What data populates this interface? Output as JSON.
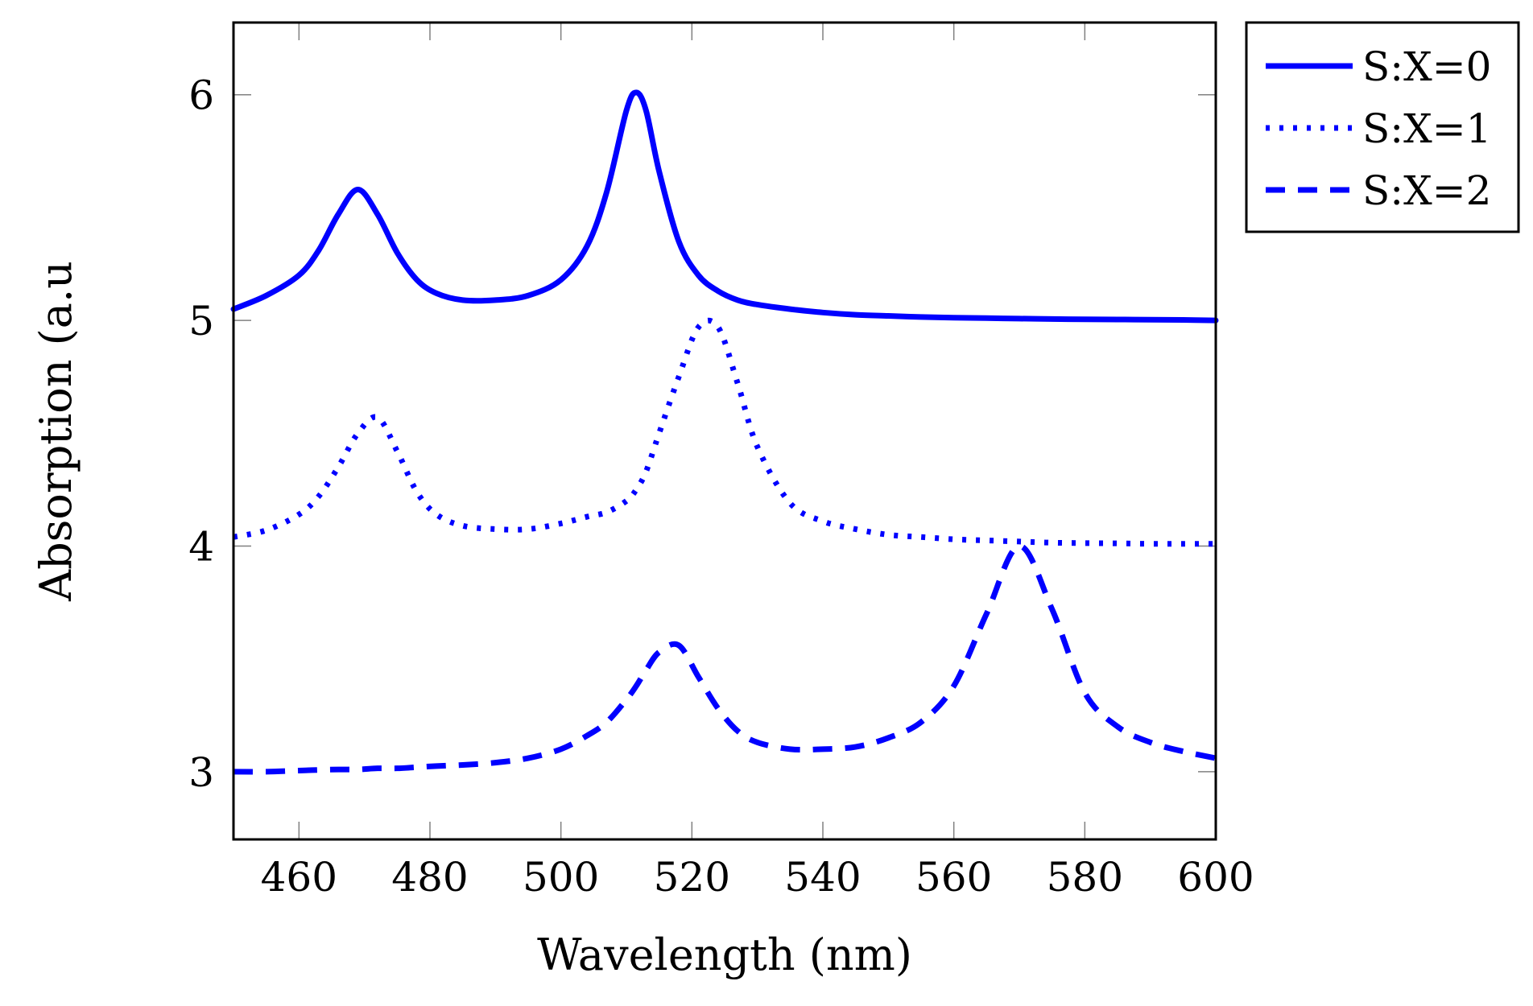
{
  "chart_data": {
    "type": "line",
    "title": "",
    "xlabel": "Wavelength (nm)",
    "ylabel": "Absorption (a.u",
    "xlim": [
      450,
      600
    ],
    "ylim": [
      2.7,
      6.32
    ],
    "xticks": [
      460,
      480,
      500,
      520,
      540,
      560,
      580,
      600
    ],
    "yticks": [
      3,
      4,
      5,
      6
    ],
    "xtick_labels": [
      "460",
      "480",
      "500",
      "520",
      "540",
      "560",
      "580",
      "600"
    ],
    "ytick_labels": [
      "3",
      "4",
      "5",
      "6"
    ],
    "grid": false,
    "legend_position": "outside-top-right",
    "color": "#0000ff",
    "x": [
      450,
      455,
      460,
      463,
      466,
      469,
      472,
      475,
      478,
      481,
      485,
      490,
      495,
      500,
      504,
      507,
      510,
      511.5,
      513,
      515,
      518,
      521,
      524,
      527,
      530,
      535,
      540,
      545,
      550,
      555,
      560,
      565,
      570,
      575,
      580,
      585,
      590,
      595,
      600
    ],
    "series": [
      {
        "name": "S:X=0",
        "style": "solid",
        "values": [
          5.05,
          5.11,
          5.2,
          5.31,
          5.47,
          5.58,
          5.47,
          5.3,
          5.18,
          5.12,
          5.09,
          5.09,
          5.11,
          5.18,
          5.33,
          5.57,
          5.93,
          6.01,
          5.93,
          5.66,
          5.35,
          5.2,
          5.13,
          5.09,
          5.07,
          5.05,
          5.035,
          5.025,
          5.02,
          5.015,
          5.012,
          5.01,
          5.008,
          5.006,
          5.005,
          5.004,
          5.003,
          5.002,
          5.0
        ]
      },
      {
        "name": "S:X=1",
        "style": "dotted",
        "values": [
          4.04,
          4.07,
          4.14,
          4.22,
          4.35,
          4.5,
          4.57,
          4.42,
          4.24,
          4.14,
          4.09,
          4.075,
          4.075,
          4.1,
          4.13,
          4.15,
          4.2,
          4.25,
          4.33,
          4.5,
          4.75,
          4.97,
          4.97,
          4.72,
          4.44,
          4.19,
          4.11,
          4.075,
          4.05,
          4.04,
          4.03,
          4.025,
          4.02,
          4.015,
          4.013,
          4.012,
          4.01,
          4.01,
          4.01
        ]
      },
      {
        "name": "S:X=2",
        "style": "dashed",
        "values": [
          3.0,
          3.0,
          3.005,
          3.008,
          3.01,
          3.01,
          3.015,
          3.015,
          3.02,
          3.025,
          3.03,
          3.04,
          3.06,
          3.1,
          3.16,
          3.22,
          3.32,
          3.38,
          3.45,
          3.53,
          3.56,
          3.42,
          3.28,
          3.18,
          3.13,
          3.1,
          3.1,
          3.11,
          3.15,
          3.22,
          3.38,
          3.7,
          4.0,
          3.72,
          3.35,
          3.2,
          3.13,
          3.09,
          3.06
        ]
      }
    ]
  }
}
